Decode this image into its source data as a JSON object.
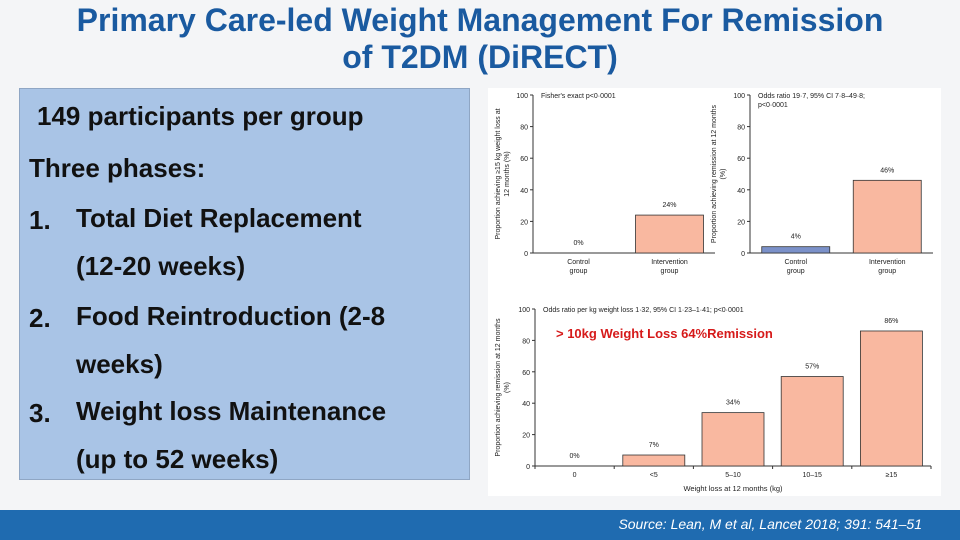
{
  "slide": {
    "title_line1": "Primary Care-led Weight Management For Remission",
    "title_line2": "of T2DM (DiRECT)",
    "info": {
      "participants": "149 participants per group",
      "phases_heading": "Three phases:",
      "items": [
        {
          "num": "1.",
          "line1": "Total Diet Replacement",
          "line2": "(12-20 weeks)"
        },
        {
          "num": "2.",
          "line1": "Food Reintroduction (2-8",
          "line2": "weeks)"
        },
        {
          "num": "3.",
          "line1": "Weight loss Maintenance",
          "line2": "(up to 52 weeks)"
        }
      ]
    },
    "annotation": "> 10kg Weight Loss  64%Remission",
    "source": "Source: Lean, M et al, Lancet 2018; 391: 541–51"
  },
  "chart_data": [
    {
      "type": "bar",
      "categories": [
        "Control group",
        "Intervention group"
      ],
      "values": [
        0,
        24
      ],
      "value_labels": [
        "0%",
        "24%"
      ],
      "annotation": "Fisher's exact p<0·0001",
      "ylabel": "Proportion achieving ≥15 kg weight loss at 12 months (%)",
      "ylim": [
        0,
        100
      ],
      "yticks": [
        "0",
        "20",
        "40",
        "60",
        "80",
        "100"
      ],
      "colors": [
        "#f9b8a0",
        "#f9b8a0"
      ]
    },
    {
      "type": "bar",
      "categories": [
        "Control group",
        "Intervention group"
      ],
      "values": [
        4,
        46
      ],
      "value_labels": [
        "4%",
        "46%"
      ],
      "annotation": "Odds ratio 19·7, 95% CI 7·8–49·8; p<0·0001",
      "ylabel": "Proportion achieving remission at 12 months (%)",
      "ylim": [
        0,
        100
      ],
      "yticks": [
        "0",
        "20",
        "40",
        "60",
        "80",
        "100"
      ],
      "colors": [
        "#7b91c9",
        "#f9b8a0"
      ]
    },
    {
      "type": "bar",
      "categories": [
        "0",
        "<5",
        "5–10",
        "10–15",
        "≥15"
      ],
      "values": [
        0,
        7,
        34,
        57,
        86
      ],
      "value_labels": [
        "0%",
        "7%",
        "34%",
        "57%",
        "86%"
      ],
      "annotation": "Odds ratio per kg weight loss 1·32, 95% CI 1·23–1·41; p<0·0001",
      "xlabel": "Weight loss at 12 months (kg)",
      "ylabel": "Proportion achieving remission at 12 months (%)",
      "ylim": [
        0,
        100
      ],
      "yticks": [
        "0",
        "20",
        "40",
        "60",
        "80",
        "100"
      ],
      "colors": [
        "#f9b8a0",
        "#f9b8a0",
        "#f9b8a0",
        "#f9b8a0",
        "#f9b8a0"
      ]
    }
  ]
}
